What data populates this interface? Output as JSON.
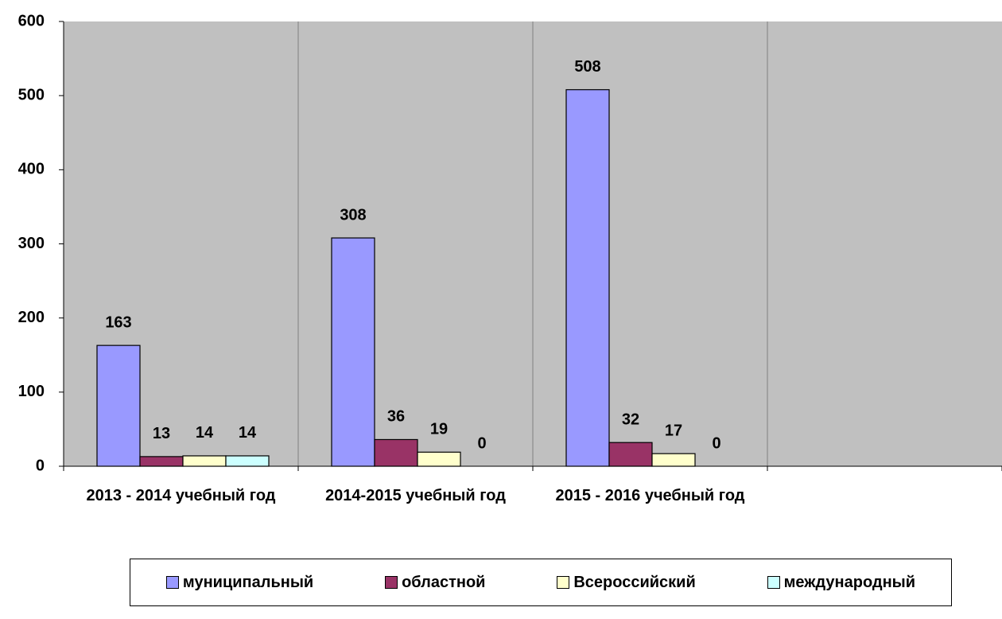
{
  "chart_data": {
    "type": "bar",
    "categories": [
      "2013 - 2014 учебный год",
      "2014-2015 учебный год",
      "2015 - 2016 учебный год",
      null
    ],
    "series": [
      {
        "name": "муниципальный",
        "color": "#9999ff",
        "values": [
          163,
          308,
          508,
          null
        ]
      },
      {
        "name": "областной",
        "color": "#993366",
        "values": [
          13,
          36,
          32,
          null
        ]
      },
      {
        "name": "Всероссийский",
        "color": "#ffffcc",
        "values": [
          14,
          19,
          17,
          null
        ]
      },
      {
        "name": "международный",
        "color": "#ccffff",
        "values": [
          14,
          0,
          0,
          null
        ]
      }
    ],
    "ylim": [
      0,
      600
    ],
    "yticks": [
      0,
      100,
      200,
      300,
      400,
      500,
      600
    ],
    "legend": "bottom",
    "plot_background": "#c0c0c0"
  }
}
